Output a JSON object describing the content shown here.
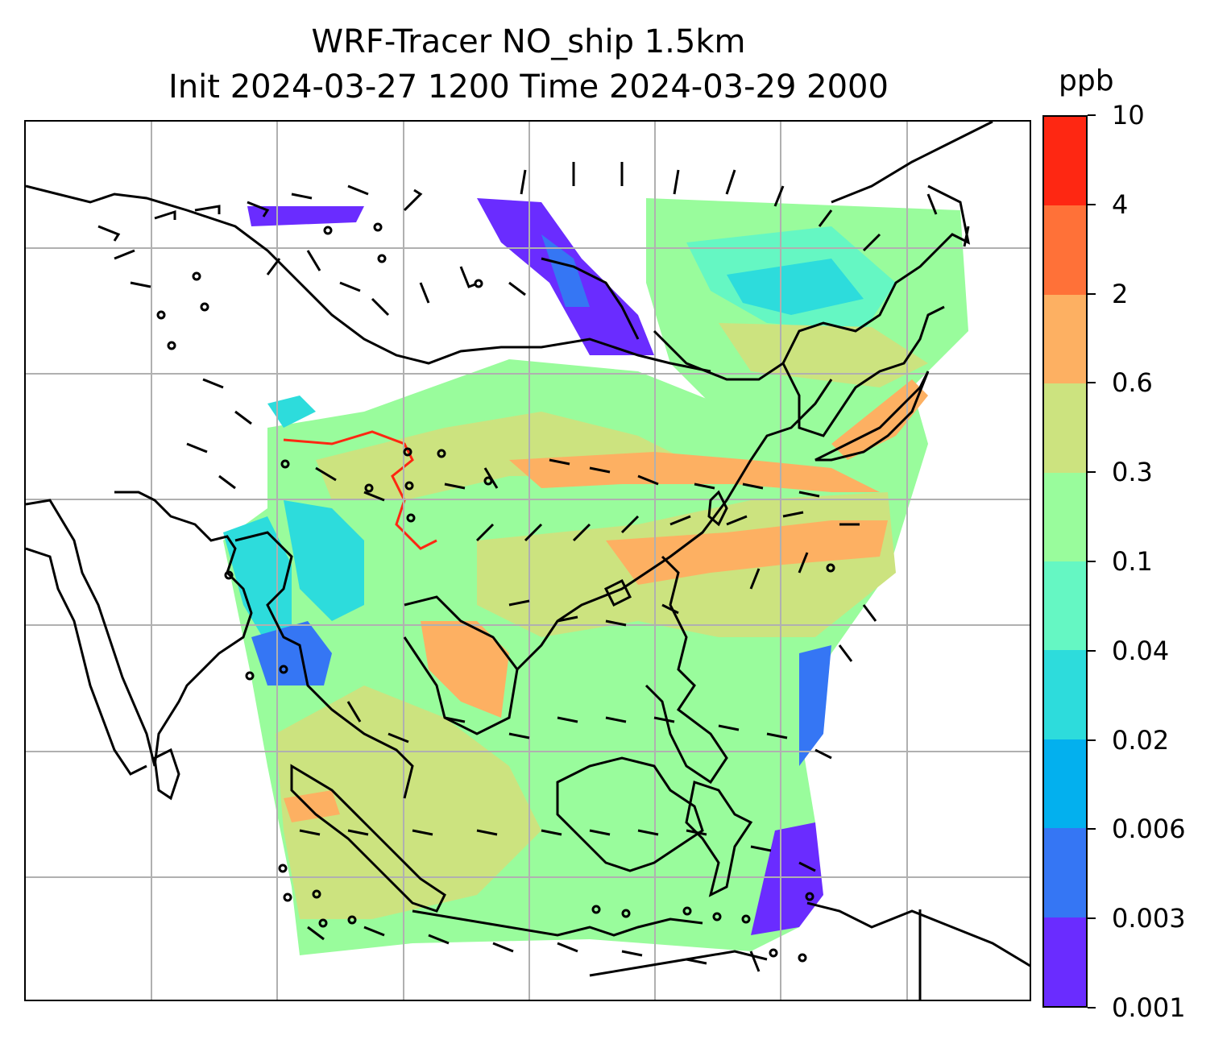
{
  "title_line1": "WRF-Tracer NO_ship 1.5km",
  "title_line2": "Init 2024-03-27 1200 Time 2024-03-29 2000",
  "colorbar": {
    "unit": "ppb",
    "labels": [
      "0.001",
      "0.003",
      "0.006",
      "0.02",
      "0.04",
      "0.1",
      "0.3",
      "0.6",
      "2",
      "4",
      "10"
    ],
    "colors": [
      "#6a2cff",
      "#3576f4",
      "#03b0ee",
      "#2ddcdc",
      "#65f7c3",
      "#99fc9c",
      "#cce37f",
      "#fdb062",
      "#ff7138",
      "#fe2712"
    ]
  },
  "map": {
    "gridlines": true,
    "wind_barbs": true,
    "coastlines": true
  }
}
